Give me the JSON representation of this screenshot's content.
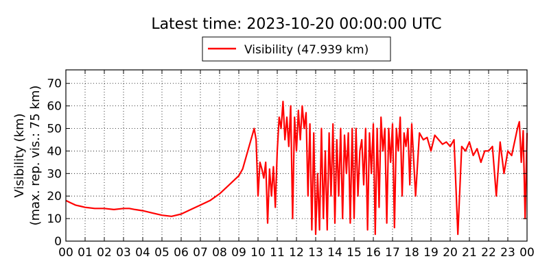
{
  "chart_data": {
    "type": "line",
    "title": "Latest time: 2023-10-20 00:00:00 UTC",
    "ylabel_line1": "Visibility (km)",
    "ylabel_line2": "(max. rep. vis.: 75 km)",
    "xlabel": "",
    "ylim": [
      0,
      76
    ],
    "xlim": [
      0,
      24
    ],
    "yticks": [
      0,
      10,
      20,
      30,
      40,
      50,
      60,
      70
    ],
    "xtick_labels": [
      "00",
      "01",
      "02",
      "03",
      "04",
      "05",
      "06",
      "07",
      "08",
      "09",
      "10",
      "11",
      "12",
      "13",
      "14",
      "15",
      "16",
      "17",
      "18",
      "19",
      "20",
      "21",
      "22",
      "23",
      "00"
    ],
    "grid": true,
    "legend_position": "top-center",
    "series": [
      {
        "name": "Visibility (47.939 km)",
        "color": "#ff0000",
        "x": [
          0,
          0.25,
          0.5,
          0.75,
          1,
          1.5,
          2,
          2.5,
          3,
          3.3,
          3.6,
          4,
          4.5,
          5,
          5.5,
          6,
          6.5,
          7,
          7.5,
          8,
          8.5,
          9,
          9.2,
          9.4,
          9.6,
          9.8,
          9.9,
          10,
          10.1,
          10.2,
          10.3,
          10.4,
          10.5,
          10.6,
          10.7,
          10.8,
          10.9,
          11,
          11.1,
          11.2,
          11.3,
          11.4,
          11.5,
          11.6,
          11.7,
          11.8,
          11.9,
          12,
          12.1,
          12.2,
          12.3,
          12.4,
          12.5,
          12.6,
          12.7,
          12.8,
          12.9,
          13,
          13.1,
          13.2,
          13.3,
          13.4,
          13.5,
          13.6,
          13.7,
          13.8,
          13.9,
          14,
          14.1,
          14.2,
          14.3,
          14.4,
          14.5,
          14.6,
          14.7,
          14.8,
          14.9,
          15,
          15.1,
          15.2,
          15.3,
          15.4,
          15.5,
          15.6,
          15.7,
          15.8,
          15.9,
          16,
          16.1,
          16.2,
          16.3,
          16.4,
          16.5,
          16.6,
          16.7,
          16.8,
          16.9,
          17,
          17.1,
          17.2,
          17.3,
          17.4,
          17.5,
          17.6,
          17.7,
          17.8,
          17.9,
          18,
          18.2,
          18.4,
          18.6,
          18.8,
          19,
          19.2,
          19.4,
          19.6,
          19.8,
          20,
          20.2,
          20.4,
          20.6,
          20.8,
          21,
          21.2,
          21.4,
          21.6,
          21.8,
          22,
          22.2,
          22.4,
          22.6,
          22.8,
          23,
          23.2,
          23.4,
          23.5,
          23.6,
          23.7,
          23.8,
          23.9,
          24
        ],
        "values": [
          18,
          17,
          16,
          15.5,
          15,
          14.5,
          14.5,
          14,
          14.5,
          14.5,
          14,
          13.5,
          12.5,
          11.5,
          11,
          12,
          14,
          16,
          18,
          21,
          25,
          29,
          32,
          38,
          44,
          50,
          45,
          20,
          35,
          32,
          28,
          35,
          8,
          32,
          20,
          33,
          15,
          40,
          55,
          50,
          62,
          45,
          55,
          42,
          60,
          10,
          55,
          40,
          58,
          45,
          60,
          50,
          57,
          20,
          52,
          5,
          48,
          3,
          30,
          5,
          50,
          10,
          40,
          5,
          48,
          20,
          52,
          8,
          45,
          20,
          50,
          10,
          47,
          30,
          48,
          8,
          50,
          10,
          50,
          20,
          40,
          45,
          25,
          50,
          5,
          48,
          30,
          52,
          3,
          50,
          15,
          55,
          40,
          50,
          8,
          50,
          35,
          52,
          6,
          50,
          40,
          55,
          20,
          48,
          42,
          50,
          25,
          52,
          20,
          48,
          45,
          46,
          40,
          47,
          45,
          43,
          44,
          42,
          45,
          3,
          42,
          40,
          44,
          38,
          41,
          35,
          40,
          40,
          42,
          20,
          44,
          30,
          40,
          38,
          46,
          50,
          53,
          35,
          49,
          10,
          48
        ]
      }
    ]
  }
}
